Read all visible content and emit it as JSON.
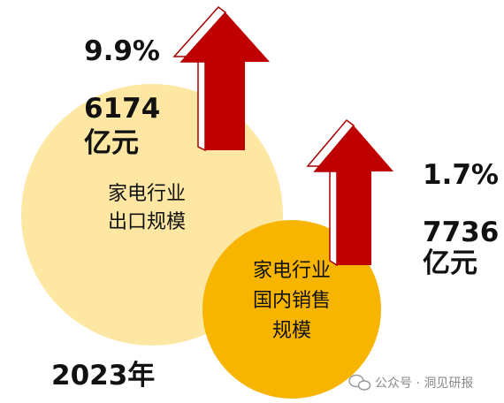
{
  "export": {
    "growth": "9.9%",
    "value": "6174",
    "unit": "亿元",
    "label": [
      "家电行业",
      "出口规模"
    ]
  },
  "domestic": {
    "growth": "1.7%",
    "value": "7736",
    "unit": "亿元",
    "label": [
      "家电行业",
      "国内销售",
      "规模"
    ]
  },
  "year": "2023年",
  "watermark": "公众号 · 洞见研报"
}
